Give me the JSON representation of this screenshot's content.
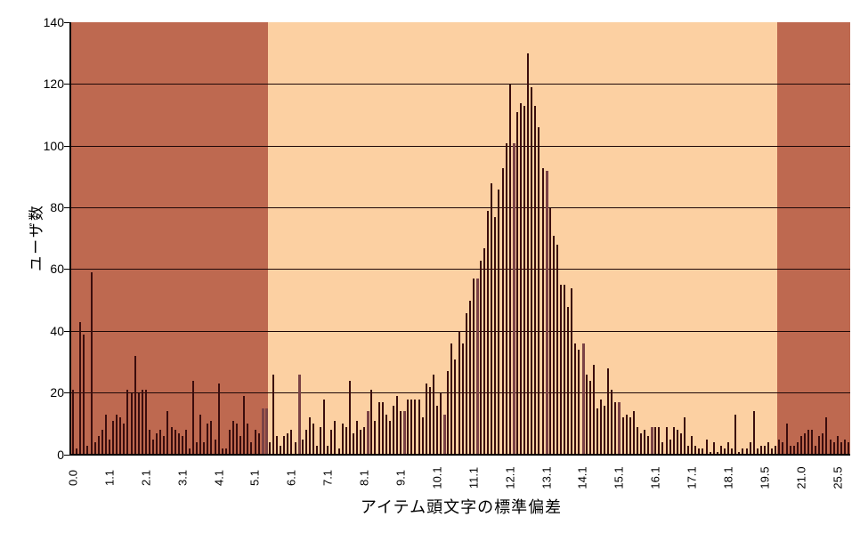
{
  "chart_data": {
    "type": "bar",
    "title": "",
    "xlabel": "アイテム頭文字の標準偏差",
    "ylabel": "ユーザ数",
    "ylim": [
      0,
      140
    ],
    "y_ticks": [
      0,
      20,
      40,
      60,
      80,
      100,
      120,
      140
    ],
    "grid": "horizontal-major",
    "legend": "none",
    "x_tick_labels": [
      "0.0",
      "1.1",
      "2.1",
      "3.1",
      "4.1",
      "5.1",
      "6.1",
      "7.1",
      "8.1",
      "9.1",
      "10.1",
      "11.1",
      "12.1",
      "13.1",
      "14.1",
      "15.1",
      "16.1",
      "17.1",
      "18.1",
      "19.5",
      "21.0",
      "25.5"
    ],
    "x_tick_interval": 10,
    "values": [
      21,
      2,
      43,
      39,
      3,
      59,
      4,
      6,
      8,
      13,
      5,
      11,
      13,
      12,
      10,
      21,
      20,
      32,
      20,
      21,
      21,
      8,
      5,
      7,
      8,
      6,
      14,
      9,
      8,
      7,
      6,
      8,
      2,
      24,
      4,
      13,
      4,
      10,
      11,
      5,
      23,
      2,
      2,
      8,
      11,
      10,
      6,
      19,
      10,
      4,
      8,
      7,
      15,
      15,
      4,
      26,
      6,
      3,
      6,
      7,
      8,
      4,
      26,
      5,
      8,
      12,
      10,
      3,
      9,
      18,
      3,
      8,
      11,
      2,
      10,
      9,
      24,
      7,
      11,
      8,
      9,
      14,
      21,
      11,
      17,
      17,
      13,
      11,
      16,
      19,
      14,
      14,
      18,
      18,
      18,
      18,
      12,
      23,
      22,
      26,
      16,
      20,
      13,
      27,
      36,
      31,
      40,
      36,
      46,
      50,
      57,
      57,
      63,
      67,
      79,
      88,
      77,
      86,
      93,
      101,
      120,
      101,
      111,
      114,
      113,
      130,
      119,
      113,
      106,
      93,
      92,
      80,
      71,
      68,
      55,
      55,
      48,
      54,
      36,
      34,
      36,
      26,
      24,
      29,
      15,
      18,
      16,
      28,
      21,
      17,
      17,
      12,
      13,
      12,
      14,
      9,
      7,
      8,
      6,
      9,
      9,
      9,
      4,
      9,
      5,
      9,
      8,
      7,
      12,
      3,
      6,
      3,
      2,
      2,
      5,
      1,
      4,
      1,
      3,
      2,
      4,
      2,
      13,
      1,
      2,
      2,
      4,
      14,
      2,
      3,
      3,
      4,
      2,
      3,
      5,
      4,
      10,
      3,
      3,
      4,
      6,
      7,
      8,
      8,
      3,
      6,
      7,
      12,
      5,
      4,
      6,
      4,
      5,
      4
    ],
    "accent_bar_indices": [
      52,
      53,
      62,
      81,
      91,
      102,
      111,
      121,
      130,
      140,
      150,
      159
    ],
    "background_zones": [
      {
        "from_index": 0,
        "to_index": 54,
        "color": "#BE6950"
      },
      {
        "from_index": 54,
        "to_index": 194,
        "color": "#FCD0A2"
      },
      {
        "from_index": 194,
        "to_index": 214,
        "color": "#BE6950"
      }
    ],
    "colors": {
      "bar": "#3B0D0D",
      "bar_accent": "#7B4245",
      "gridline": "#1E0707",
      "axis": "#000000",
      "zone_dark": "#BE6950",
      "zone_light": "#FCD0A2",
      "text": "#000000"
    }
  }
}
